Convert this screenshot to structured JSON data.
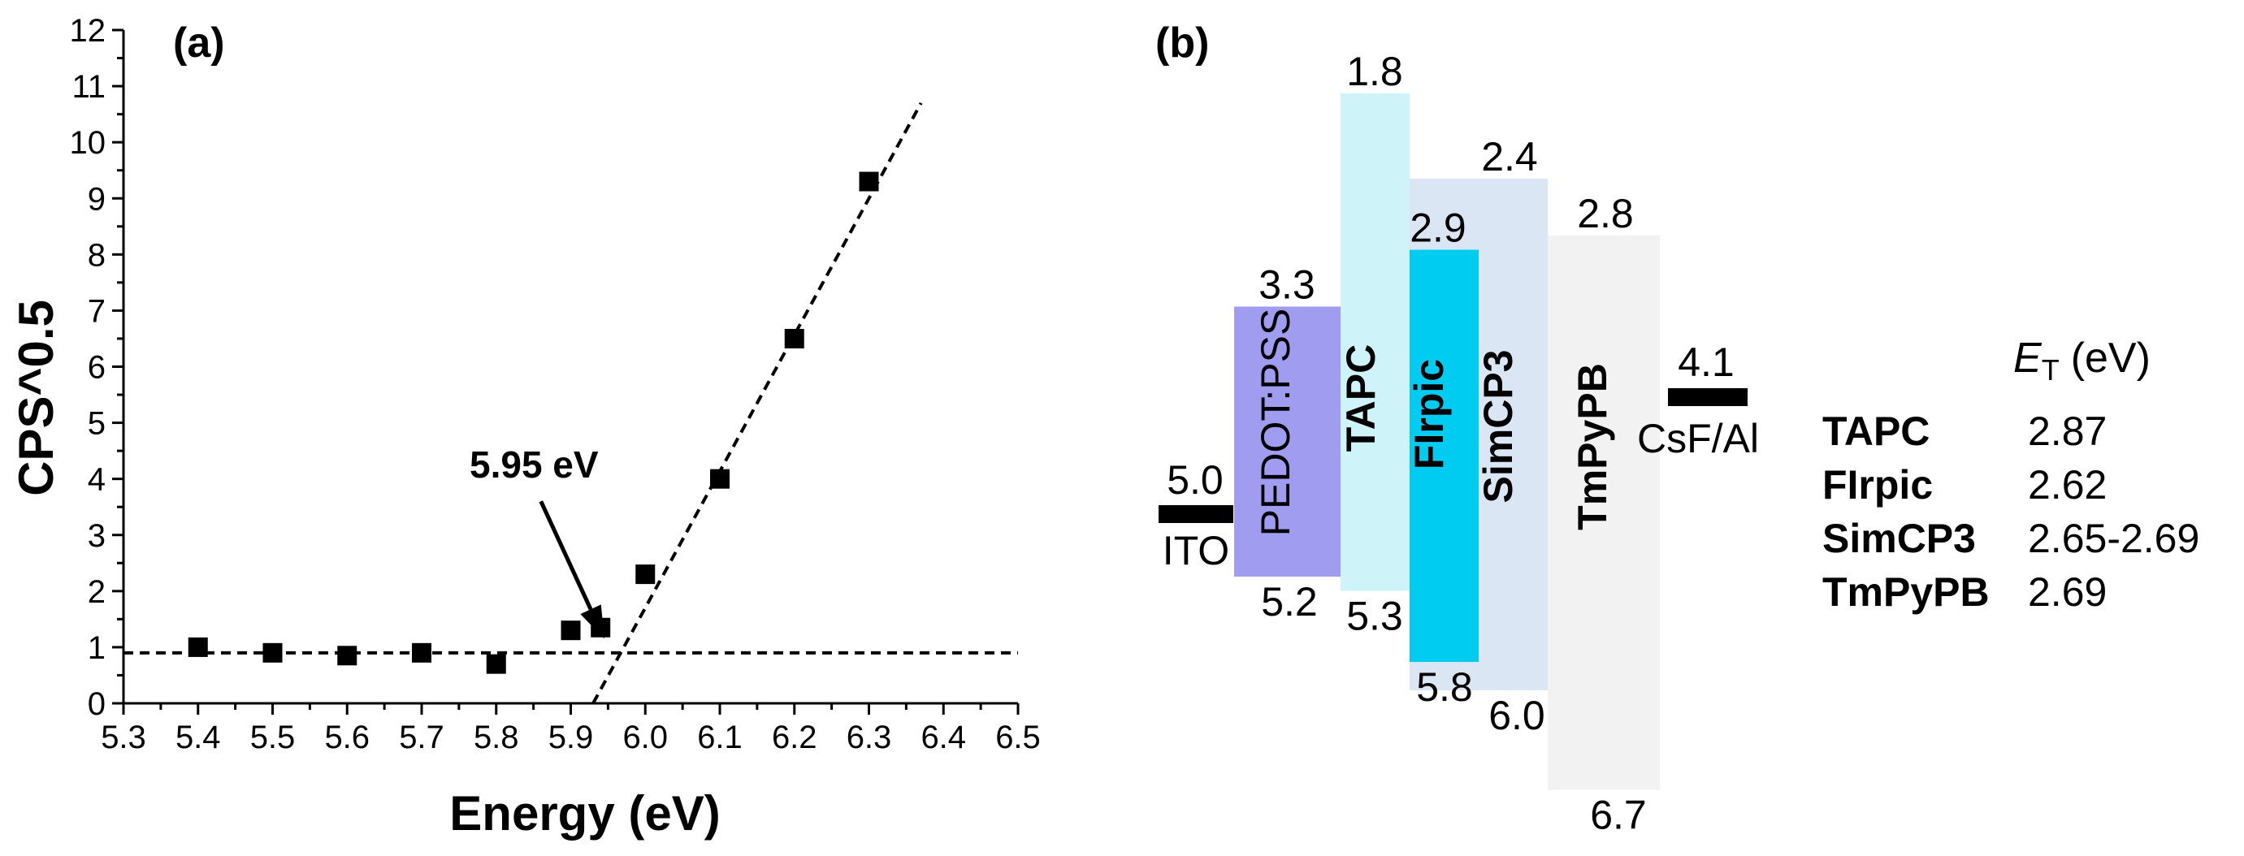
{
  "panel_a": {
    "label": "(a)",
    "annotation": "5.95 eV"
  },
  "panel_b": {
    "label": "(b)",
    "table": {
      "header": "(eV)",
      "header_symbol": "E",
      "header_subscript": "T",
      "rows": [
        {
          "material": "TAPC",
          "value": "2.87"
        },
        {
          "material": "FIrpic",
          "value": "2.62"
        },
        {
          "material": "SimCP3",
          "value": "2.65-2.69"
        },
        {
          "material": "TmPyPB",
          "value": "2.69"
        }
      ]
    }
  },
  "chart_data": [
    {
      "type": "scatter",
      "panel": "(a)",
      "xlabel": "Energy (eV)",
      "ylabel": "CPS^0.5",
      "xlim": [
        5.3,
        6.5
      ],
      "ylim": [
        0,
        12
      ],
      "xticks": [
        "5.3",
        "5.4",
        "5.5",
        "5.6",
        "5.7",
        "5.8",
        "5.9",
        "6.0",
        "6.1",
        "6.2",
        "6.3",
        "6.4",
        "6.5"
      ],
      "yticks": [
        "0",
        "1",
        "2",
        "3",
        "4",
        "5",
        "6",
        "7",
        "8",
        "9",
        "10",
        "11",
        "12"
      ],
      "series": [
        {
          "x": [
            5.4,
            5.5,
            5.6,
            5.7,
            5.8,
            5.9,
            5.94,
            6.0,
            6.1,
            6.2,
            6.3
          ],
          "y": [
            1.0,
            0.9,
            0.85,
            0.9,
            0.7,
            1.3,
            1.35,
            2.3,
            4.0,
            6.5,
            9.3
          ]
        }
      ],
      "fit_lines": [
        {
          "style": "dashed",
          "x": [
            5.3,
            6.5
          ],
          "y": [
            0.9,
            0.9
          ]
        },
        {
          "style": "dashed",
          "x": [
            5.93,
            6.37
          ],
          "y": [
            0.0,
            10.7
          ]
        }
      ],
      "arrow": {
        "from": [
          5.86,
          3.6
        ],
        "to": [
          5.945,
          1.15
        ]
      },
      "grid": false
    },
    {
      "type": "energy-level-diagram",
      "panel": "(b)",
      "electrodes": [
        {
          "name": "ITO",
          "level": "5.0"
        },
        {
          "name": "CsF/Al",
          "level": "4.1"
        }
      ],
      "layers": [
        {
          "name": "PEDOT:PSS",
          "lumo": 3.3,
          "homo": 5.2,
          "lumo_label": "3.3",
          "homo_label": "5.2",
          "color": "#a09cf0",
          "bold": false
        },
        {
          "name": "TAPC",
          "lumo": 1.8,
          "homo": 5.3,
          "lumo_label": "1.8",
          "homo_label": "5.3",
          "color": "#cef4fa",
          "bold": true
        },
        {
          "name": "SimCP3",
          "lumo": 2.4,
          "homo": 6.0,
          "lumo_label": "2.4",
          "homo_label": "6.0",
          "color": "#dbe6f5",
          "bold": true
        },
        {
          "name": "FIrpic",
          "lumo": 2.9,
          "homo": 5.8,
          "lumo_label": "2.9",
          "homo_label": "5.8",
          "color": "#00ccf2",
          "bold": true
        },
        {
          "name": "TmPyPB",
          "lumo": 2.8,
          "homo": 6.7,
          "lumo_label": "2.8",
          "homo_label": "6.7",
          "color": "#f2f2f2",
          "bold": true
        }
      ]
    }
  ]
}
